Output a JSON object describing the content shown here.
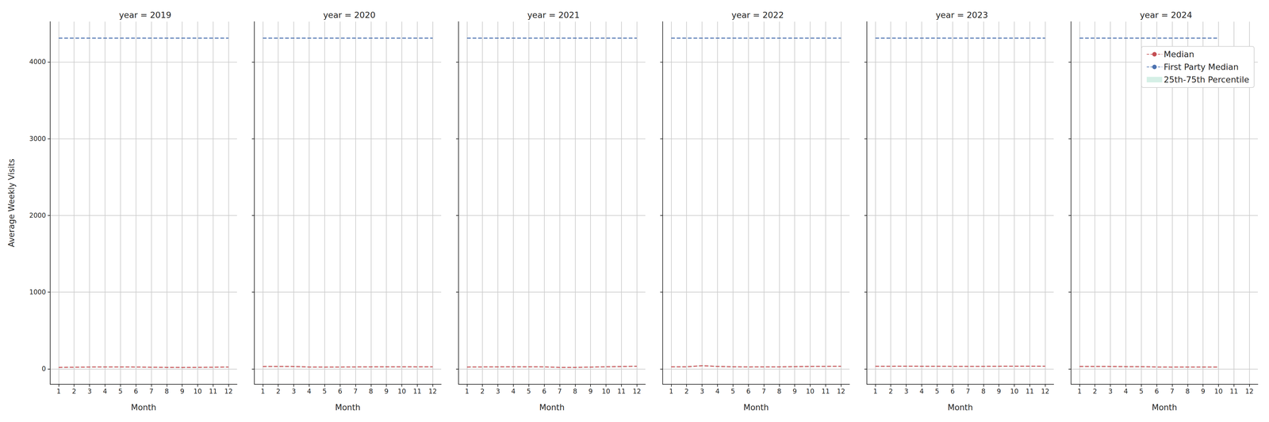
{
  "chart_data": [
    {
      "type": "line",
      "title": "year = 2019",
      "x_label": "Month",
      "y_label": "Average Weekly Visits",
      "x": [
        1,
        2,
        3,
        4,
        5,
        6,
        7,
        8,
        9,
        10,
        11,
        12
      ],
      "xlim": [
        0.45,
        12.55
      ],
      "xticks": [
        1,
        2,
        3,
        4,
        5,
        6,
        7,
        8,
        9,
        10,
        11,
        12
      ],
      "ylim": [
        -200,
        4525
      ],
      "yticks": [
        0,
        1000,
        2000,
        3000,
        4000
      ],
      "grid": true,
      "series": [
        {
          "name": "Median",
          "color": "#c44e52",
          "line_style": "dashed",
          "values": [
            20,
            22,
            25,
            26,
            26,
            25,
            22,
            20,
            19,
            20,
            22,
            25
          ]
        },
        {
          "name": "First Party Median",
          "color": "#4c72b0",
          "line_style": "dashed",
          "values": [
            4310,
            4310,
            4310,
            4310,
            4310,
            4310,
            4310,
            4310,
            4310,
            4310,
            4310,
            4310
          ]
        },
        {
          "name": "25th-75th Percentile",
          "type": "band",
          "color": "#d5efe6",
          "lower": [
            16,
            18,
            21,
            22,
            22,
            21,
            18,
            16,
            15,
            16,
            18,
            21
          ],
          "upper": [
            25,
            27,
            30,
            31,
            31,
            30,
            27,
            25,
            24,
            25,
            27,
            30
          ]
        }
      ]
    },
    {
      "type": "line",
      "title": "year = 2020",
      "x_label": "Month",
      "tick_labels": "x",
      "x": [
        1,
        2,
        3,
        4,
        5,
        6,
        7,
        8,
        9,
        10,
        11,
        12
      ],
      "xlim": [
        0.45,
        12.55
      ],
      "xticks": [
        1,
        2,
        3,
        4,
        5,
        6,
        7,
        8,
        9,
        10,
        11,
        12
      ],
      "ylim": [
        -200,
        4525
      ],
      "yticks": [
        0,
        1000,
        2000,
        3000,
        4000
      ],
      "grid": true,
      "series": [
        {
          "name": "Median",
          "color": "#c44e52",
          "line_style": "dashed",
          "values": [
            32,
            33,
            32,
            25,
            24,
            25,
            26,
            27,
            28,
            28,
            27,
            28
          ]
        },
        {
          "name": "First Party Median",
          "color": "#4c72b0",
          "line_style": "dashed",
          "values": [
            4310,
            4310,
            4310,
            4310,
            4310,
            4310,
            4310,
            4310,
            4310,
            4310,
            4310,
            4310
          ]
        },
        {
          "name": "25th-75th Percentile",
          "type": "band",
          "color": "#d5efe6",
          "lower": [
            28,
            29,
            28,
            21,
            20,
            21,
            22,
            23,
            24,
            24,
            23,
            24
          ],
          "upper": [
            37,
            38,
            37,
            30,
            29,
            30,
            31,
            32,
            33,
            33,
            32,
            33
          ]
        }
      ]
    },
    {
      "type": "line",
      "title": "year = 2021",
      "x_label": "Month",
      "tick_labels": "x",
      "x": [
        1,
        2,
        3,
        4,
        5,
        6,
        7,
        8,
        9,
        10,
        11,
        12
      ],
      "xlim": [
        0.45,
        12.55
      ],
      "xticks": [
        1,
        2,
        3,
        4,
        5,
        6,
        7,
        8,
        9,
        10,
        11,
        12
      ],
      "ylim": [
        -200,
        4525
      ],
      "yticks": [
        0,
        1000,
        2000,
        3000,
        4000
      ],
      "grid": true,
      "series": [
        {
          "name": "Median",
          "color": "#c44e52",
          "line_style": "dashed",
          "values": [
            25,
            26,
            27,
            28,
            28,
            27,
            20,
            20,
            24,
            28,
            32,
            35
          ]
        },
        {
          "name": "First Party Median",
          "color": "#4c72b0",
          "line_style": "dashed",
          "values": [
            4310,
            4310,
            4310,
            4310,
            4310,
            4310,
            4310,
            4310,
            4310,
            4310,
            4310,
            4310
          ]
        },
        {
          "name": "25th-75th Percentile",
          "type": "band",
          "color": "#d5efe6",
          "lower": [
            21,
            22,
            23,
            24,
            24,
            23,
            16,
            16,
            20,
            24,
            28,
            31
          ],
          "upper": [
            30,
            31,
            32,
            33,
            33,
            32,
            25,
            25,
            29,
            33,
            37,
            40
          ]
        }
      ]
    },
    {
      "type": "line",
      "title": "year = 2022",
      "x_label": "Month",
      "tick_labels": "x",
      "x": [
        1,
        2,
        3,
        4,
        5,
        6,
        7,
        8,
        9,
        10,
        11,
        12
      ],
      "xlim": [
        0.45,
        12.55
      ],
      "xticks": [
        1,
        2,
        3,
        4,
        5,
        6,
        7,
        8,
        9,
        10,
        11,
        12
      ],
      "ylim": [
        -200,
        4525
      ],
      "yticks": [
        0,
        1000,
        2000,
        3000,
        4000
      ],
      "grid": true,
      "series": [
        {
          "name": "Median",
          "color": "#c44e52",
          "line_style": "dashed",
          "values": [
            28,
            28,
            42,
            33,
            28,
            26,
            27,
            27,
            30,
            33,
            34,
            35
          ]
        },
        {
          "name": "First Party Median",
          "color": "#4c72b0",
          "line_style": "dashed",
          "values": [
            4310,
            4310,
            4310,
            4310,
            4310,
            4310,
            4310,
            4310,
            4310,
            4310,
            4310,
            4310
          ]
        },
        {
          "name": "25th-75th Percentile",
          "type": "band",
          "color": "#d5efe6",
          "lower": [
            24,
            24,
            38,
            29,
            24,
            22,
            23,
            23,
            26,
            29,
            30,
            31
          ],
          "upper": [
            33,
            33,
            47,
            38,
            33,
            31,
            32,
            32,
            35,
            38,
            39,
            40
          ]
        }
      ]
    },
    {
      "type": "line",
      "title": "year = 2023",
      "x_label": "Month",
      "tick_labels": "x",
      "x": [
        1,
        2,
        3,
        4,
        5,
        6,
        7,
        8,
        9,
        10,
        11,
        12
      ],
      "xlim": [
        0.45,
        12.55
      ],
      "xticks": [
        1,
        2,
        3,
        4,
        5,
        6,
        7,
        8,
        9,
        10,
        11,
        12
      ],
      "ylim": [
        -200,
        4525
      ],
      "yticks": [
        0,
        1000,
        2000,
        3000,
        4000
      ],
      "grid": true,
      "series": [
        {
          "name": "Median",
          "color": "#c44e52",
          "line_style": "dashed",
          "values": [
            35,
            35,
            36,
            35,
            35,
            34,
            34,
            34,
            35,
            36,
            36,
            36
          ]
        },
        {
          "name": "First Party Median",
          "color": "#4c72b0",
          "line_style": "dashed",
          "values": [
            4310,
            4310,
            4310,
            4310,
            4310,
            4310,
            4310,
            4310,
            4310,
            4310,
            4310,
            4310
          ]
        },
        {
          "name": "25th-75th Percentile",
          "type": "band",
          "color": "#d5efe6",
          "lower": [
            31,
            31,
            32,
            31,
            31,
            30,
            30,
            30,
            31,
            32,
            32,
            32
          ],
          "upper": [
            40,
            40,
            41,
            40,
            40,
            39,
            39,
            39,
            40,
            41,
            41,
            41
          ]
        }
      ]
    },
    {
      "type": "line",
      "title": "year = 2024",
      "x_label": "Month",
      "tick_labels": "x",
      "legend": "upper right",
      "x": [
        1,
        2,
        3,
        4,
        5,
        6,
        7,
        8,
        9,
        10
      ],
      "xlim": [
        0.45,
        12.55
      ],
      "xticks": [
        1,
        2,
        3,
        4,
        5,
        6,
        7,
        8,
        9,
        10,
        11,
        12
      ],
      "ylim": [
        -200,
        4525
      ],
      "yticks": [
        0,
        1000,
        2000,
        3000,
        4000
      ],
      "grid": true,
      "series": [
        {
          "name": "Median",
          "color": "#c44e52",
          "line_style": "dashed",
          "values": [
            33,
            33,
            32,
            30,
            30,
            25,
            24,
            25,
            25,
            24
          ]
        },
        {
          "name": "First Party Median",
          "color": "#4c72b0",
          "line_style": "dashed",
          "values": [
            4310,
            4310,
            4310,
            4310,
            4310,
            4310,
            4310,
            4310,
            4310,
            4310
          ]
        },
        {
          "name": "25th-75th Percentile",
          "type": "band",
          "color": "#d5efe6",
          "lower": [
            29,
            29,
            28,
            26,
            26,
            21,
            20,
            21,
            21,
            20
          ],
          "upper": [
            38,
            38,
            37,
            35,
            35,
            30,
            29,
            30,
            30,
            29
          ]
        }
      ]
    }
  ]
}
